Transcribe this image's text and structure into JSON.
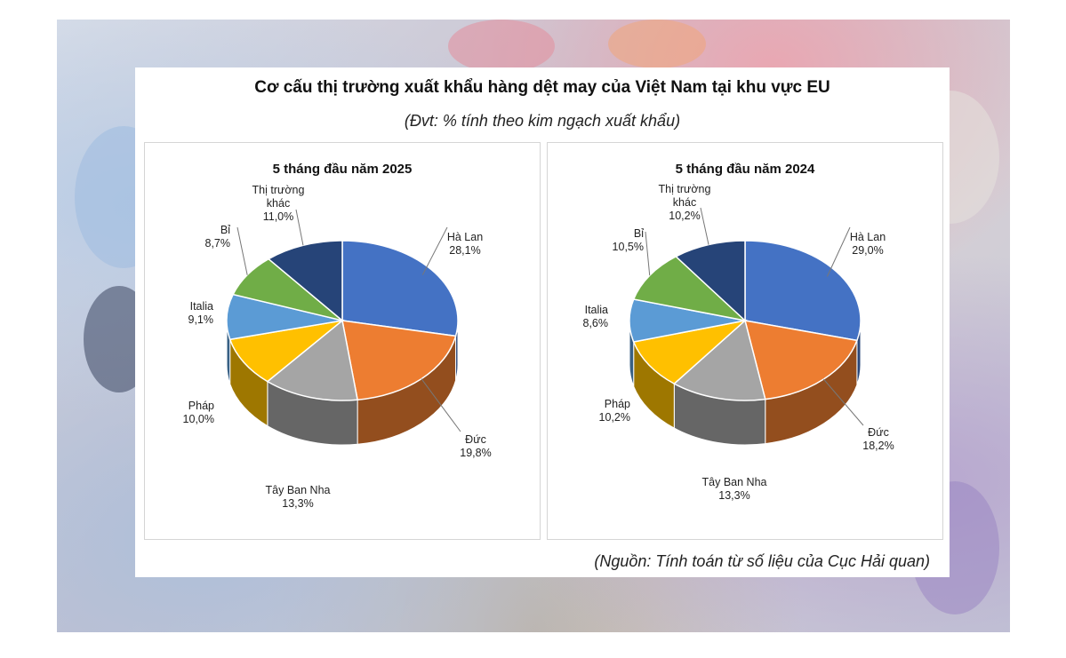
{
  "title": "Cơ cấu thị trường xuất khẩu hàng dệt may của Việt Nam tại khu vực EU",
  "subtitle": "(Đvt: % tính theo kim ngạch xuất khẩu)",
  "source": "(Nguồn: Tính toán từ số liệu của Cục Hải quan)",
  "colors": {
    "ha_lan": "#4472C4",
    "duc": "#ED7D31",
    "tay_ban_nha": "#A5A5A5",
    "phap": "#FFC000",
    "italia": "#5B9BD5",
    "bi": "#70AD47",
    "khac": "#264478"
  },
  "chart_data": [
    {
      "type": "pie",
      "title": "5 tháng đầu năm 2025",
      "slices": [
        {
          "label": "Hà Lan",
          "value": 28.1,
          "text": "28,1%",
          "color": "#4472C4"
        },
        {
          "label": "Đức",
          "value": 19.8,
          "text": "19,8%",
          "color": "#ED7D31"
        },
        {
          "label": "Tây Ban Nha",
          "value": 13.3,
          "text": "13,3%",
          "color": "#A5A5A5"
        },
        {
          "label": "Pháp",
          "value": 10.0,
          "text": "10,0%",
          "color": "#FFC000"
        },
        {
          "label": "Italia",
          "value": 9.1,
          "text": "9,1%",
          "color": "#5B9BD5"
        },
        {
          "label": "Bỉ",
          "value": 8.7,
          "text": "8,7%",
          "color": "#70AD47"
        },
        {
          "label": "Thị trường khác",
          "value": 11.0,
          "text": "11,0%",
          "color": "#264478"
        }
      ]
    },
    {
      "type": "pie",
      "title": "5 tháng đầu năm 2024",
      "slices": [
        {
          "label": "Hà Lan",
          "value": 29.0,
          "text": "29,0%",
          "color": "#4472C4"
        },
        {
          "label": "Đức",
          "value": 18.2,
          "text": "18,2%",
          "color": "#ED7D31"
        },
        {
          "label": "Tây Ban Nha",
          "value": 13.3,
          "text": "13,3%",
          "color": "#A5A5A5"
        },
        {
          "label": "Pháp",
          "value": 10.2,
          "text": "10,2%",
          "color": "#FFC000"
        },
        {
          "label": "Italia",
          "value": 8.6,
          "text": "8,6%",
          "color": "#5B9BD5"
        },
        {
          "label": "Bỉ",
          "value": 10.5,
          "text": "10,5%",
          "color": "#70AD47"
        },
        {
          "label": "Thị trường khác",
          "value": 10.2,
          "text": "10,2%",
          "color": "#264478"
        }
      ]
    }
  ]
}
